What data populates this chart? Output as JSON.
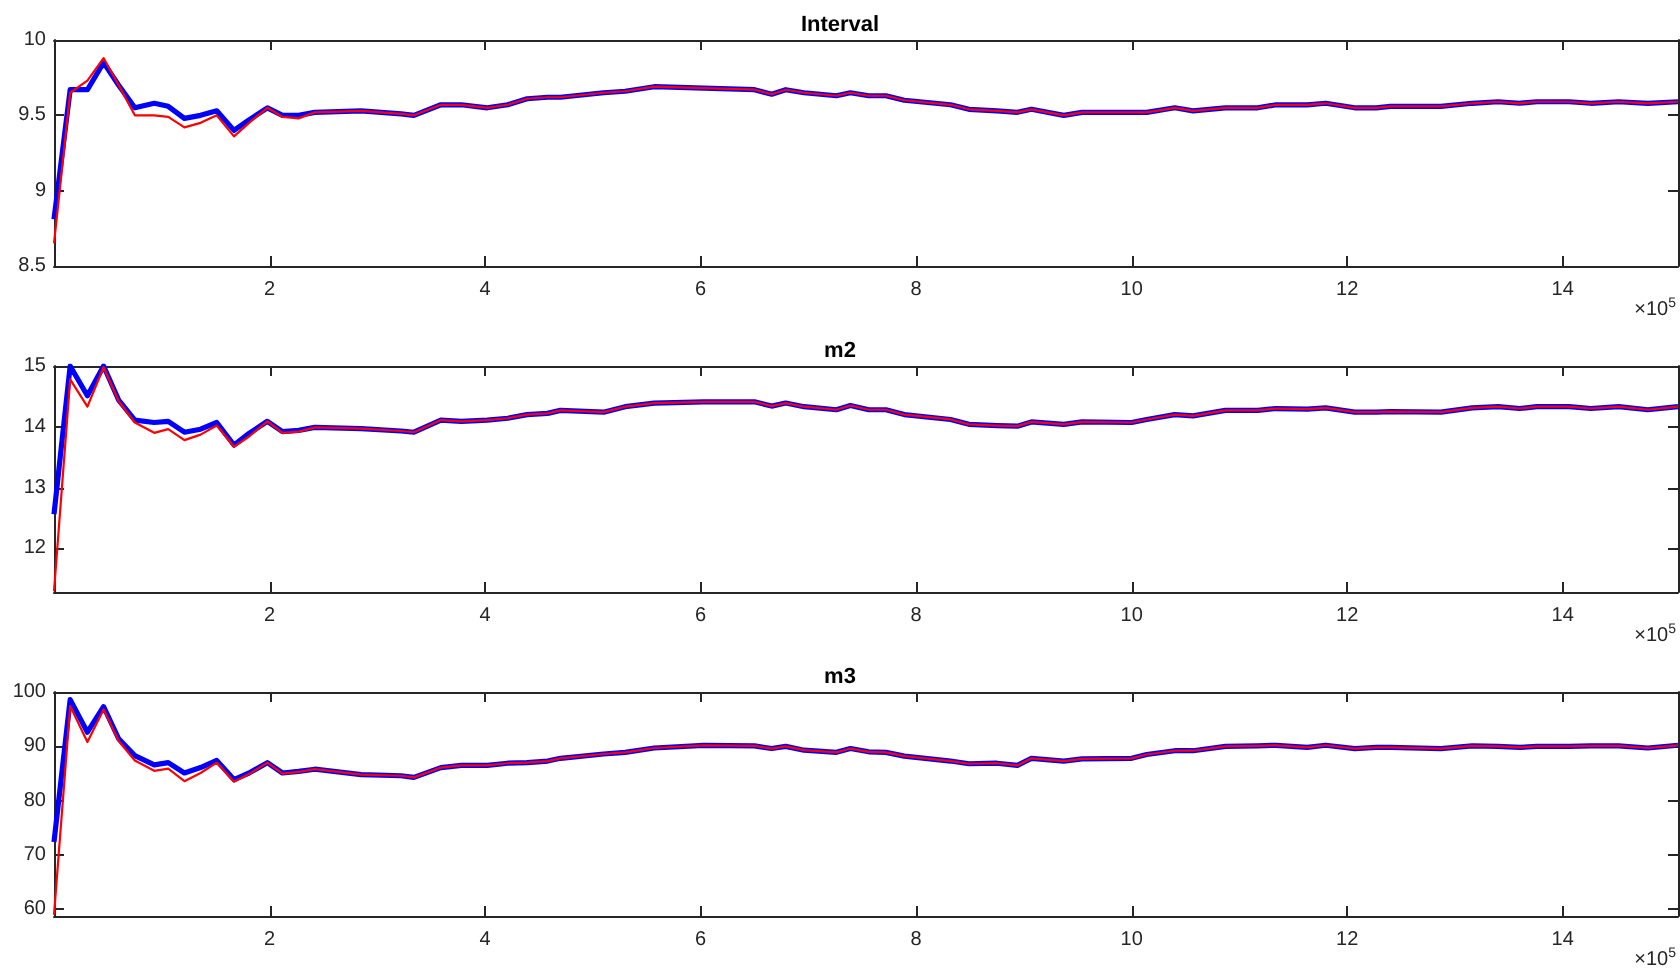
{
  "chart_data": [
    {
      "type": "line",
      "title": "Interval",
      "annotations": [
        "×10$^{5}$"
      ],
      "marker": "none",
      "line_style": "solid",
      "x": [
        0,
        0.15,
        0.31,
        0.46,
        0.6,
        0.75,
        0.93,
        1.06,
        1.21,
        1.36,
        1.51,
        1.67,
        1.81,
        1.98,
        2.12,
        2.27,
        2.42,
        2.85,
        3.22,
        3.34,
        3.59,
        3.78,
        4.02,
        4.21,
        4.39,
        4.58,
        4.7,
        5.1,
        5.3,
        5.57,
        6.03,
        6.5,
        6.66,
        6.79,
        6.96,
        7.26,
        7.39,
        7.56,
        7.72,
        7.89,
        8.32,
        8.49,
        8.75,
        8.94,
        9.07,
        9.37,
        9.54,
        10,
        10.14,
        10.4,
        10.57,
        10.87,
        11.17,
        11.34,
        11.63,
        11.8,
        12.07,
        12.27,
        12.4,
        12.87,
        13.16,
        13.4,
        13.6,
        13.76,
        14.06,
        14.26,
        14.52,
        14.79,
        15.07
      ],
      "xlim": [
        0,
        15.07
      ],
      "xticks": [
        2,
        4,
        6,
        8,
        10,
        12,
        14
      ],
      "ylim": [
        8.5,
        10
      ],
      "yticks": [
        8.5,
        9,
        9.5,
        10
      ],
      "series": [
        {
          "color": "#0000ff",
          "values": [
            8.81,
            9.67,
            9.67,
            9.85,
            9.7,
            9.55,
            9.58,
            9.56,
            9.48,
            9.5,
            9.53,
            9.4,
            9.47,
            9.55,
            9.5,
            9.5,
            9.52,
            9.53,
            9.51,
            9.5,
            9.57,
            9.57,
            9.55,
            9.57,
            9.61,
            9.62,
            9.62,
            9.65,
            9.66,
            9.69,
            9.68,
            9.67,
            9.64,
            9.67,
            9.65,
            9.63,
            9.65,
            9.63,
            9.63,
            9.6,
            9.57,
            9.54,
            9.53,
            9.52,
            9.54,
            9.5,
            9.52,
            9.52,
            9.52,
            9.55,
            9.53,
            9.55,
            9.55,
            9.57,
            9.57,
            9.58,
            9.55,
            9.55,
            9.56,
            9.56,
            9.58,
            9.59,
            9.58,
            9.59,
            9.59,
            9.58,
            9.59,
            9.58,
            9.59
          ]
        },
        {
          "color": "#ff0000",
          "values": [
            8.65,
            9.65,
            9.73,
            9.88,
            9.7,
            9.5,
            9.5,
            9.49,
            9.42,
            9.45,
            9.5,
            9.36,
            9.45,
            9.55,
            9.49,
            9.48,
            9.52,
            9.53,
            9.51,
            9.5,
            9.57,
            9.57,
            9.55,
            9.57,
            9.61,
            9.62,
            9.62,
            9.65,
            9.66,
            9.69,
            9.68,
            9.67,
            9.64,
            9.67,
            9.65,
            9.63,
            9.65,
            9.63,
            9.63,
            9.6,
            9.57,
            9.54,
            9.53,
            9.52,
            9.54,
            9.5,
            9.52,
            9.52,
            9.52,
            9.55,
            9.53,
            9.55,
            9.55,
            9.57,
            9.57,
            9.58,
            9.55,
            9.55,
            9.56,
            9.56,
            9.58,
            9.59,
            9.58,
            9.59,
            9.59,
            9.58,
            9.59,
            9.58,
            9.59
          ]
        }
      ]
    },
    {
      "type": "line",
      "title": "m2",
      "annotations": [
        "×10$^{5}$"
      ],
      "marker": "none",
      "line_style": "solid",
      "x": [
        0,
        0.15,
        0.31,
        0.46,
        0.6,
        0.75,
        0.93,
        1.06,
        1.21,
        1.36,
        1.51,
        1.67,
        1.81,
        1.98,
        2.12,
        2.27,
        2.42,
        2.85,
        3.22,
        3.34,
        3.59,
        3.78,
        4.02,
        4.21,
        4.39,
        4.58,
        4.7,
        5.1,
        5.3,
        5.57,
        6.03,
        6.5,
        6.66,
        6.79,
        6.96,
        7.26,
        7.39,
        7.56,
        7.72,
        7.89,
        8.32,
        8.49,
        8.75,
        8.94,
        9.07,
        9.37,
        9.54,
        10,
        10.14,
        10.4,
        10.57,
        10.87,
        11.17,
        11.34,
        11.63,
        11.8,
        12.07,
        12.27,
        12.4,
        12.87,
        13.16,
        13.4,
        13.6,
        13.76,
        14.06,
        14.26,
        14.52,
        14.79,
        15.07
      ],
      "xlim": [
        0,
        15.07
      ],
      "xticks": [
        2,
        4,
        6,
        8,
        10,
        12,
        14
      ],
      "ylim": [
        11.28,
        15
      ],
      "yticks": [
        12,
        13,
        14,
        15
      ],
      "series": [
        {
          "color": "#0000ff",
          "values": [
            12.56,
            15.0,
            14.51,
            15.0,
            14.44,
            14.11,
            14.07,
            14.09,
            13.91,
            13.96,
            14.07,
            13.7,
            13.89,
            14.09,
            13.92,
            13.94,
            13.99,
            13.97,
            13.93,
            13.91,
            14.11,
            14.09,
            14.11,
            14.14,
            14.2,
            14.22,
            14.27,
            14.24,
            14.33,
            14.39,
            14.41,
            14.41,
            14.34,
            14.39,
            14.33,
            14.28,
            14.35,
            14.28,
            14.28,
            14.2,
            14.12,
            14.04,
            14.02,
            14.01,
            14.08,
            14.04,
            14.08,
            14.07,
            14.12,
            14.2,
            14.18,
            14.27,
            14.27,
            14.3,
            14.29,
            14.31,
            14.24,
            14.24,
            14.25,
            14.24,
            14.31,
            14.33,
            14.3,
            14.33,
            14.33,
            14.3,
            14.33,
            14.28,
            14.33
          ]
        },
        {
          "color": "#ff0000",
          "values": [
            11.29,
            14.78,
            14.33,
            14.98,
            14.42,
            14.07,
            13.9,
            13.96,
            13.78,
            13.87,
            14.02,
            13.67,
            13.84,
            14.09,
            13.9,
            13.92,
            13.99,
            13.97,
            13.93,
            13.91,
            14.11,
            14.09,
            14.11,
            14.14,
            14.2,
            14.22,
            14.27,
            14.24,
            14.33,
            14.39,
            14.41,
            14.41,
            14.34,
            14.39,
            14.33,
            14.28,
            14.35,
            14.28,
            14.28,
            14.2,
            14.12,
            14.04,
            14.02,
            14.01,
            14.08,
            14.04,
            14.08,
            14.07,
            14.12,
            14.2,
            14.18,
            14.27,
            14.27,
            14.3,
            14.29,
            14.31,
            14.24,
            14.24,
            14.25,
            14.24,
            14.31,
            14.33,
            14.3,
            14.33,
            14.33,
            14.3,
            14.33,
            14.28,
            14.33
          ]
        }
      ]
    },
    {
      "type": "line",
      "title": "m3",
      "annotations": [
        "×10$^{5}$"
      ],
      "marker": "none",
      "line_style": "solid",
      "x": [
        0,
        0.15,
        0.31,
        0.46,
        0.6,
        0.75,
        0.93,
        1.06,
        1.21,
        1.36,
        1.51,
        1.67,
        1.81,
        1.98,
        2.12,
        2.27,
        2.42,
        2.85,
        3.22,
        3.34,
        3.59,
        3.78,
        4.02,
        4.21,
        4.39,
        4.58,
        4.7,
        5.1,
        5.3,
        5.57,
        6.03,
        6.5,
        6.66,
        6.79,
        6.96,
        7.26,
        7.39,
        7.56,
        7.72,
        7.89,
        8.32,
        8.49,
        8.75,
        8.94,
        9.07,
        9.37,
        9.54,
        10,
        10.14,
        10.4,
        10.57,
        10.87,
        11.17,
        11.34,
        11.63,
        11.8,
        12.07,
        12.27,
        12.4,
        12.87,
        13.16,
        13.4,
        13.6,
        13.76,
        14.06,
        14.26,
        14.52,
        14.79,
        15.07
      ],
      "xlim": [
        0,
        15.07
      ],
      "xticks": [
        2,
        4,
        6,
        8,
        10,
        12,
        14
      ],
      "ylim": [
        58.8,
        100
      ],
      "yticks": [
        60,
        70,
        80,
        90,
        100
      ],
      "series": [
        {
          "color": "#0000ff",
          "values": [
            72.4,
            98.6,
            92.6,
            97.3,
            91.4,
            88.3,
            86.6,
            87.0,
            85.1,
            86.1,
            87.4,
            83.9,
            85.1,
            87.0,
            85.1,
            85.4,
            85.8,
            84.8,
            84.6,
            84.3,
            86.1,
            86.5,
            86.5,
            86.9,
            87.0,
            87.3,
            87.8,
            88.6,
            88.9,
            89.7,
            90.2,
            90.1,
            89.6,
            90.0,
            89.3,
            88.9,
            89.6,
            89.0,
            88.9,
            88.2,
            87.3,
            86.8,
            86.9,
            86.5,
            87.8,
            87.3,
            87.7,
            87.8,
            88.5,
            89.2,
            89.2,
            90.0,
            90.1,
            90.2,
            89.8,
            90.2,
            89.6,
            89.8,
            89.8,
            89.6,
            90.1,
            90.0,
            89.8,
            90.0,
            90.0,
            90.1,
            90.1,
            89.7,
            90.2
          ]
        },
        {
          "color": "#ff0000",
          "values": [
            59.0,
            97.4,
            90.8,
            96.8,
            91.0,
            87.4,
            85.5,
            85.9,
            83.6,
            85.1,
            87.0,
            83.5,
            84.9,
            87.0,
            85.0,
            85.3,
            85.8,
            84.8,
            84.6,
            84.3,
            86.1,
            86.5,
            86.5,
            86.9,
            87.0,
            87.3,
            87.8,
            88.6,
            88.9,
            89.7,
            90.2,
            90.1,
            89.6,
            90.0,
            89.3,
            88.9,
            89.6,
            89.0,
            88.9,
            88.2,
            87.3,
            86.8,
            86.9,
            86.5,
            87.8,
            87.3,
            87.7,
            87.8,
            88.5,
            89.2,
            89.2,
            90.0,
            90.1,
            90.2,
            89.8,
            90.2,
            89.6,
            89.8,
            89.8,
            89.6,
            90.1,
            90.0,
            89.8,
            90.0,
            90.0,
            90.1,
            90.1,
            89.7,
            90.2
          ]
        }
      ]
    }
  ]
}
